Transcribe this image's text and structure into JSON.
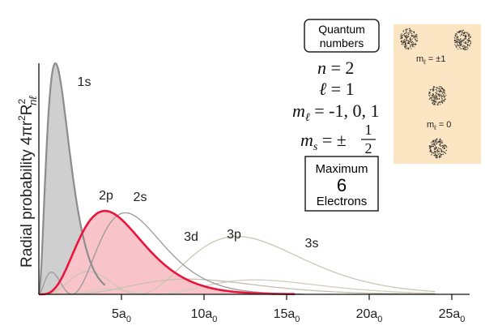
{
  "chart_data": {
    "type": "line",
    "x_ticks": [
      5,
      10,
      15,
      20,
      25
    ],
    "x_tick_labels": [
      {
        "main": "5a",
        "sub": "0"
      },
      {
        "main": "10a",
        "sub": "0"
      },
      {
        "main": "15a",
        "sub": "0"
      },
      {
        "main": "20a",
        "sub": "0"
      },
      {
        "main": "25a",
        "sub": "0"
      }
    ],
    "xlim": [
      0,
      26
    ],
    "ylim": [
      0,
      1.0
    ],
    "ylabel": {
      "main": "Radial probability 4πr",
      "sup1": "2",
      "mid": "R",
      "sup2": "2",
      "sub": "nℓ"
    },
    "grid": false,
    "series": [
      {
        "name": "1s",
        "orbital": "1s",
        "color": "#8c8c8c",
        "fill": "#cfcfcf",
        "highlight": false
      },
      {
        "name": "2s",
        "orbital": "2s",
        "color": "#9a9a9a",
        "fill": null,
        "highlight": false
      },
      {
        "name": "2p",
        "orbital": "2p",
        "color": "#e8163c",
        "fill": "#f9c4c9",
        "highlight": true
      },
      {
        "name": "3s",
        "orbital": "3s",
        "color": "#d2cdbd",
        "fill": null,
        "highlight": false
      },
      {
        "name": "3p",
        "orbital": "3p",
        "color": "#cbc6b4",
        "fill": null,
        "highlight": false
      },
      {
        "name": "3d",
        "orbital": "3d",
        "color": "#c6c1ae",
        "fill": null,
        "highlight": false
      }
    ]
  },
  "quantum_box": {
    "line1": "Quantum",
    "line2": "numbers"
  },
  "equations": {
    "n": "n",
    "n_value": " = 2",
    "l": "ℓ",
    "l_value": " = 1",
    "ml": "m",
    "ml_sub": "ℓ",
    "ml_value": " = -1, 0, 1",
    "ms": "m",
    "ms_sub": "s",
    "ms_eq": " = ±",
    "ms_num": "1",
    "ms_den": "2"
  },
  "max_box": {
    "line1": "Maximum",
    "count": "6",
    "line3": "Electrons"
  },
  "orbital_panel": {
    "bg": "#fbe5c2",
    "label_pm1": {
      "m": "m",
      "sub": "ℓ",
      "val": " = ±1"
    },
    "label_0": {
      "m": "m",
      "sub": "ℓ",
      "val": " = 0"
    }
  }
}
